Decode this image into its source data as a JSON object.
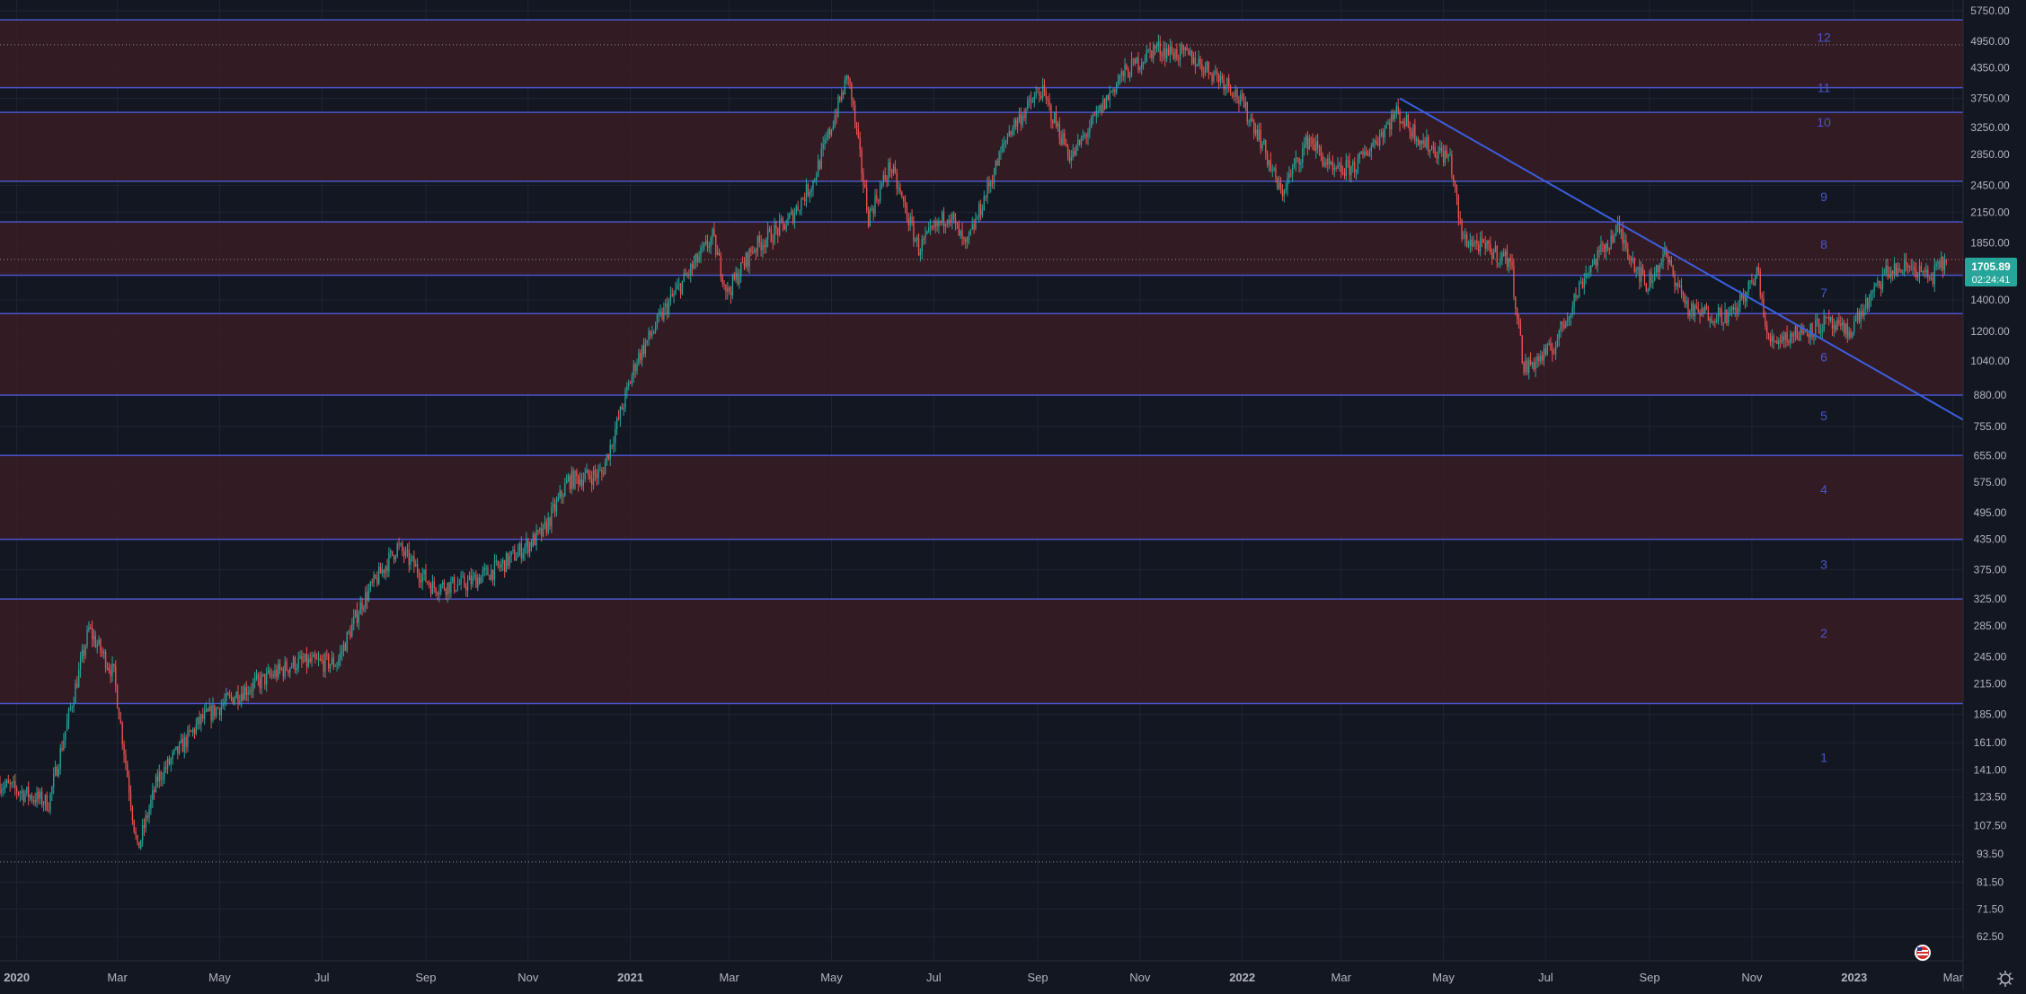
{
  "chart_data": {
    "type": "candlestick",
    "scale": "log",
    "grid": true,
    "ylim": [
      58,
      5750
    ],
    "price_axis_ticks": [
      "5750.00",
      "4950.00",
      "4350.00",
      "3750.00",
      "3250.00",
      "2850.00",
      "2450.00",
      "2150.00",
      "1850.00",
      "1600.00",
      "1400.00",
      "1200.00",
      "1040.00",
      "880.00",
      "755.00",
      "655.00",
      "575.00",
      "495.00",
      "435.00",
      "375.00",
      "325.00",
      "285.00",
      "245.00",
      "215.00",
      "185.00",
      "161.00",
      "141.00",
      "123.50",
      "107.50",
      "93.50",
      "81.50",
      "71.50",
      "62.50"
    ],
    "time_axis": [
      {
        "label": "2020",
        "date": "2020-01-01",
        "bold": true
      },
      {
        "label": "Mar",
        "date": "2020-03-01",
        "bold": false
      },
      {
        "label": "May",
        "date": "2020-05-01",
        "bold": false
      },
      {
        "label": "Jul",
        "date": "2020-07-01",
        "bold": false
      },
      {
        "label": "Sep",
        "date": "2020-09-01",
        "bold": false
      },
      {
        "label": "Nov",
        "date": "2020-11-01",
        "bold": false
      },
      {
        "label": "2021",
        "date": "2021-01-01",
        "bold": true
      },
      {
        "label": "Mar",
        "date": "2021-03-01",
        "bold": false
      },
      {
        "label": "May",
        "date": "2021-05-01",
        "bold": false
      },
      {
        "label": "Jul",
        "date": "2021-07-01",
        "bold": false
      },
      {
        "label": "Sep",
        "date": "2021-09-01",
        "bold": false
      },
      {
        "label": "Nov",
        "date": "2021-11-01",
        "bold": false
      },
      {
        "label": "2022",
        "date": "2022-01-01",
        "bold": true
      },
      {
        "label": "Mar",
        "date": "2022-03-01",
        "bold": false
      },
      {
        "label": "May",
        "date": "2022-05-01",
        "bold": false
      },
      {
        "label": "Jul",
        "date": "2022-07-01",
        "bold": false
      },
      {
        "label": "Sep",
        "date": "2022-09-01",
        "bold": false
      },
      {
        "label": "Nov",
        "date": "2022-11-01",
        "bold": false
      },
      {
        "label": "2023",
        "date": "2023-01-01",
        "bold": true
      },
      {
        "label": "Mar",
        "date": "2023-03-01",
        "bold": false
      }
    ],
    "range_start": "2019-12-22",
    "range_end": "2023-03-07",
    "price_path": [
      [
        "2019-12-22",
        132
      ],
      [
        "2020-01-20",
        120
      ],
      [
        "2020-02-13",
        280
      ],
      [
        "2020-02-28",
        225
      ],
      [
        "2020-03-13",
        95
      ],
      [
        "2020-03-25",
        135
      ],
      [
        "2020-04-20",
        180
      ],
      [
        "2020-05-12",
        205
      ],
      [
        "2020-06-15",
        238
      ],
      [
        "2020-07-10",
        238
      ],
      [
        "2020-07-25",
        320
      ],
      [
        "2020-08-15",
        420
      ],
      [
        "2020-09-05",
        345
      ],
      [
        "2020-09-25",
        350
      ],
      [
        "2020-10-15",
        380
      ],
      [
        "2020-11-10",
        450
      ],
      [
        "2020-11-25",
        580
      ],
      [
        "2020-12-15",
        600
      ],
      [
        "2021-01-05",
        1050
      ],
      [
        "2021-01-25",
        1400
      ],
      [
        "2021-02-19",
        1900
      ],
      [
        "2021-02-28",
        1450
      ],
      [
        "2021-03-15",
        1800
      ],
      [
        "2021-04-05",
        2050
      ],
      [
        "2021-04-20",
        2500
      ],
      [
        "2021-05-11",
        4200
      ],
      [
        "2021-05-23",
        2100
      ],
      [
        "2021-06-05",
        2700
      ],
      [
        "2021-06-22",
        1800
      ],
      [
        "2021-07-10",
        2150
      ],
      [
        "2021-07-20",
        1800
      ],
      [
        "2021-08-15",
        3200
      ],
      [
        "2021-09-03",
        3900
      ],
      [
        "2021-09-21",
        2800
      ],
      [
        "2021-10-20",
        4150
      ],
      [
        "2021-11-10",
        4800
      ],
      [
        "2021-12-01",
        4600
      ],
      [
        "2021-12-25",
        4000
      ],
      [
        "2022-01-10",
        3200
      ],
      [
        "2022-01-24",
        2350
      ],
      [
        "2022-02-10",
        3100
      ],
      [
        "2022-02-24",
        2600
      ],
      [
        "2022-03-10",
        2700
      ],
      [
        "2022-04-03",
        3500
      ],
      [
        "2022-04-20",
        3000
      ],
      [
        "2022-05-05",
        2800
      ],
      [
        "2022-05-12",
        1900
      ],
      [
        "2022-06-10",
        1700
      ],
      [
        "2022-06-18",
        1000
      ],
      [
        "2022-07-05",
        1100
      ],
      [
        "2022-07-25",
        1600
      ],
      [
        "2022-08-13",
        1980
      ],
      [
        "2022-08-30",
        1500
      ],
      [
        "2022-09-10",
        1750
      ],
      [
        "2022-09-25",
        1320
      ],
      [
        "2022-10-20",
        1300
      ],
      [
        "2022-11-05",
        1600
      ],
      [
        "2022-11-10",
        1150
      ],
      [
        "2022-11-25",
        1180
      ],
      [
        "2022-12-15",
        1250
      ],
      [
        "2022-12-28",
        1190
      ],
      [
        "2023-01-13",
        1450
      ],
      [
        "2023-01-20",
        1600
      ],
      [
        "2023-02-05",
        1650
      ],
      [
        "2023-02-15",
        1550
      ],
      [
        "2023-02-25",
        1705.89
      ]
    ],
    "zones": [
      [
        195,
        325
      ],
      [
        435,
        655
      ],
      [
        880,
        1310
      ],
      [
        1580,
        2050
      ],
      [
        2500,
        3500
      ],
      [
        3950,
        5500
      ]
    ],
    "level_lines": [
      195,
      325,
      435,
      655,
      880,
      1310,
      1580,
      2050,
      2500,
      3500,
      3950,
      5500
    ],
    "dotted_levels": [
      90,
      4870,
      1705.89
    ],
    "zone_labels": [
      {
        "label": "12",
        "price": 5050
      },
      {
        "label": "11",
        "price": 3950
      },
      {
        "label": "10",
        "price": 3340
      },
      {
        "label": "9",
        "price": 2320
      },
      {
        "label": "8",
        "price": 1840
      },
      {
        "label": "7",
        "price": 1450
      },
      {
        "label": "6",
        "price": 1060
      },
      {
        "label": "5",
        "price": 795
      },
      {
        "label": "4",
        "price": 555
      },
      {
        "label": "3",
        "price": 385
      },
      {
        "label": "2",
        "price": 275
      },
      {
        "label": "1",
        "price": 150
      }
    ],
    "trendline": {
      "start_date": "2022-04-05",
      "start_price": 3750,
      "end_date": "2023-03-07",
      "end_price": 780
    },
    "last_price": "1705.89",
    "countdown": "02:24:41",
    "colors": {
      "background": "#131722",
      "grid": "#1f2433",
      "zone_fill": "#3a1c25",
      "level_line": "#4a55c9",
      "zone_label": "#4a55c9",
      "trendline": "#3b5fe0",
      "up": "#26a69a",
      "down": "#ef5350",
      "axis_text": "#b2b5be",
      "price_tag": "#26a69a"
    }
  }
}
